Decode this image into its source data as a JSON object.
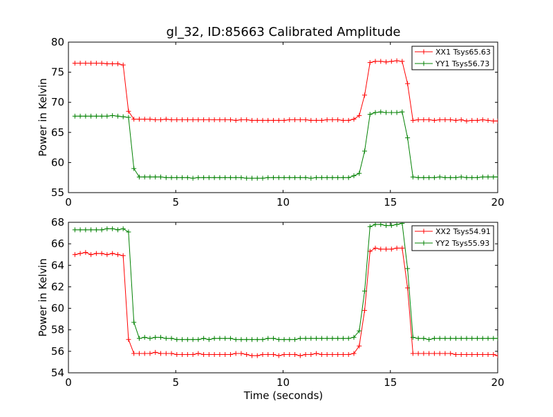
{
  "chart_data": [
    {
      "type": "line",
      "title": "gl_32, ID:85663 Calibrated Amplitude",
      "xlabel": "",
      "ylabel": "Power in Kelvin",
      "xlim": [
        0,
        20
      ],
      "ylim": [
        55,
        80
      ],
      "xticks": [
        0,
        5,
        10,
        15,
        20
      ],
      "yticks": [
        55,
        60,
        65,
        70,
        75,
        80
      ],
      "xtick_labels": [
        "0",
        "5",
        "10",
        "15",
        "20"
      ],
      "ytick_labels": [
        "55",
        "60",
        "65",
        "70",
        "75",
        "80"
      ],
      "legend_position": "top-right",
      "x": [
        0.3,
        0.55,
        0.8,
        1.05,
        1.3,
        1.55,
        1.8,
        2.05,
        2.3,
        2.55,
        2.8,
        3.05,
        3.3,
        3.55,
        3.8,
        4.05,
        4.3,
        4.55,
        4.8,
        5.05,
        5.3,
        5.55,
        5.8,
        6.05,
        6.3,
        6.55,
        6.8,
        7.05,
        7.3,
        7.55,
        7.8,
        8.05,
        8.3,
        8.55,
        8.8,
        9.05,
        9.3,
        9.55,
        9.8,
        10.05,
        10.3,
        10.55,
        10.8,
        11.05,
        11.3,
        11.55,
        11.8,
        12.05,
        12.3,
        12.55,
        12.8,
        13.05,
        13.3,
        13.55,
        13.8,
        14.05,
        14.3,
        14.55,
        14.8,
        15.05,
        15.3,
        15.55,
        15.8,
        16.05,
        16.3,
        16.55,
        16.8,
        17.05,
        17.3,
        17.55,
        17.8,
        18.05,
        18.3,
        18.55,
        18.8,
        19.05,
        19.3,
        19.55,
        19.8,
        20.0
      ],
      "series": [
        {
          "name": "XX1 Tsys65.63",
          "color": "#ff0000",
          "values": [
            76.5,
            76.5,
            76.5,
            76.5,
            76.5,
            76.5,
            76.4,
            76.4,
            76.4,
            76.2,
            68.5,
            67.2,
            67.2,
            67.2,
            67.2,
            67.1,
            67.1,
            67.2,
            67.1,
            67.1,
            67.1,
            67.1,
            67.1,
            67.1,
            67.1,
            67.1,
            67.1,
            67.1,
            67.1,
            67.1,
            67.0,
            67.1,
            67.1,
            67.0,
            67.0,
            67.0,
            67.0,
            67.0,
            67.0,
            67.0,
            67.1,
            67.1,
            67.1,
            67.1,
            67.0,
            67.0,
            67.0,
            67.1,
            67.1,
            67.1,
            67.0,
            67.0,
            67.2,
            67.8,
            71.2,
            76.6,
            76.8,
            76.8,
            76.7,
            76.8,
            76.9,
            76.8,
            73.1,
            67.0,
            67.1,
            67.1,
            67.1,
            67.0,
            67.1,
            67.1,
            67.1,
            67.0,
            67.1,
            66.9,
            67.0,
            67.0,
            67.1,
            67.0,
            66.9,
            66.9
          ]
        },
        {
          "name": "YY1 Tsys56.73",
          "color": "#008000",
          "values": [
            67.7,
            67.7,
            67.7,
            67.7,
            67.7,
            67.7,
            67.7,
            67.8,
            67.7,
            67.6,
            67.5,
            59.0,
            57.6,
            57.6,
            57.6,
            57.6,
            57.6,
            57.5,
            57.5,
            57.5,
            57.5,
            57.5,
            57.4,
            57.5,
            57.5,
            57.5,
            57.5,
            57.5,
            57.5,
            57.5,
            57.5,
            57.5,
            57.4,
            57.4,
            57.4,
            57.4,
            57.5,
            57.5,
            57.5,
            57.5,
            57.5,
            57.5,
            57.5,
            57.5,
            57.4,
            57.5,
            57.5,
            57.5,
            57.5,
            57.5,
            57.5,
            57.5,
            57.8,
            58.2,
            61.9,
            68.0,
            68.3,
            68.4,
            68.3,
            68.3,
            68.3,
            68.4,
            64.1,
            57.6,
            57.5,
            57.5,
            57.5,
            57.5,
            57.6,
            57.5,
            57.5,
            57.5,
            57.6,
            57.5,
            57.5,
            57.5,
            57.6,
            57.6,
            57.6,
            57.6
          ]
        }
      ]
    },
    {
      "type": "line",
      "title": "",
      "xlabel": "Time (seconds)",
      "ylabel": "Power in Kelvin",
      "xlim": [
        0,
        20
      ],
      "ylim": [
        54,
        68
      ],
      "xticks": [
        0,
        5,
        10,
        15,
        20
      ],
      "yticks": [
        54,
        56,
        58,
        60,
        62,
        64,
        66,
        68
      ],
      "xtick_labels": [
        "0",
        "5",
        "10",
        "15",
        "20"
      ],
      "ytick_labels": [
        "54",
        "56",
        "58",
        "60",
        "62",
        "64",
        "66",
        "68"
      ],
      "legend_position": "top-right",
      "x": [
        0.3,
        0.55,
        0.8,
        1.05,
        1.3,
        1.55,
        1.8,
        2.05,
        2.3,
        2.55,
        2.8,
        3.05,
        3.3,
        3.55,
        3.8,
        4.05,
        4.3,
        4.55,
        4.8,
        5.05,
        5.3,
        5.55,
        5.8,
        6.05,
        6.3,
        6.55,
        6.8,
        7.05,
        7.3,
        7.55,
        7.8,
        8.05,
        8.3,
        8.55,
        8.8,
        9.05,
        9.3,
        9.55,
        9.8,
        10.05,
        10.3,
        10.55,
        10.8,
        11.05,
        11.3,
        11.55,
        11.8,
        12.05,
        12.3,
        12.55,
        12.8,
        13.05,
        13.3,
        13.55,
        13.8,
        14.05,
        14.3,
        14.55,
        14.8,
        15.05,
        15.3,
        15.55,
        15.8,
        16.05,
        16.3,
        16.55,
        16.8,
        17.05,
        17.3,
        17.55,
        17.8,
        18.05,
        18.3,
        18.55,
        18.8,
        19.05,
        19.3,
        19.55,
        19.8,
        20.0
      ],
      "series": [
        {
          "name": "XX2 Tsys54.91",
          "color": "#ff0000",
          "values": [
            65.0,
            65.1,
            65.2,
            65.0,
            65.1,
            65.1,
            65.0,
            65.1,
            65.0,
            64.9,
            57.1,
            55.8,
            55.8,
            55.8,
            55.8,
            55.9,
            55.8,
            55.8,
            55.8,
            55.7,
            55.7,
            55.7,
            55.7,
            55.8,
            55.7,
            55.7,
            55.7,
            55.7,
            55.7,
            55.7,
            55.8,
            55.8,
            55.7,
            55.6,
            55.6,
            55.7,
            55.7,
            55.7,
            55.6,
            55.7,
            55.7,
            55.7,
            55.6,
            55.7,
            55.7,
            55.8,
            55.7,
            55.7,
            55.7,
            55.7,
            55.7,
            55.7,
            55.8,
            56.5,
            59.8,
            65.3,
            65.6,
            65.5,
            65.5,
            65.5,
            65.6,
            65.6,
            61.9,
            55.8,
            55.8,
            55.8,
            55.8,
            55.8,
            55.8,
            55.8,
            55.8,
            55.7,
            55.7,
            55.7,
            55.7,
            55.7,
            55.7,
            55.7,
            55.7,
            55.6
          ]
        },
        {
          "name": "YY2 Tsys55.93",
          "color": "#008000",
          "values": [
            67.3,
            67.3,
            67.3,
            67.3,
            67.3,
            67.3,
            67.4,
            67.4,
            67.3,
            67.4,
            67.1,
            58.7,
            57.2,
            57.3,
            57.2,
            57.3,
            57.3,
            57.2,
            57.2,
            57.1,
            57.1,
            57.1,
            57.1,
            57.1,
            57.2,
            57.1,
            57.2,
            57.2,
            57.2,
            57.2,
            57.1,
            57.1,
            57.1,
            57.1,
            57.1,
            57.1,
            57.2,
            57.2,
            57.1,
            57.1,
            57.1,
            57.1,
            57.2,
            57.2,
            57.2,
            57.2,
            57.2,
            57.2,
            57.2,
            57.2,
            57.2,
            57.2,
            57.3,
            57.9,
            61.6,
            67.6,
            67.8,
            67.8,
            67.7,
            67.7,
            67.8,
            67.9,
            63.7,
            57.3,
            57.2,
            57.2,
            57.1,
            57.2,
            57.2,
            57.2,
            57.2,
            57.2,
            57.2,
            57.2,
            57.2,
            57.2,
            57.2,
            57.2,
            57.2,
            57.2
          ]
        }
      ]
    }
  ]
}
